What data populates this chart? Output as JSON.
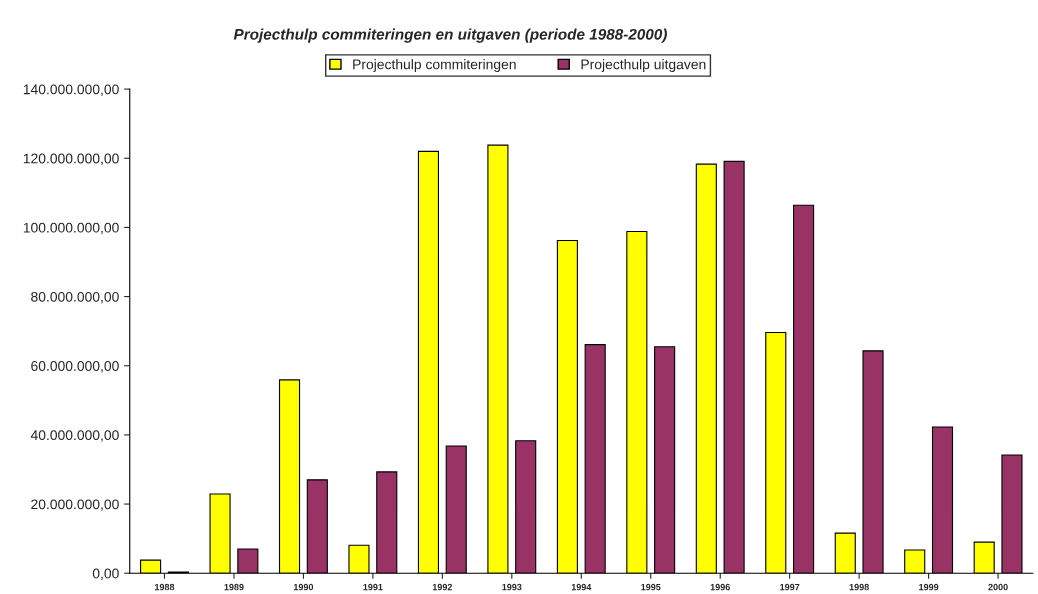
{
  "chart_data": {
    "type": "bar",
    "title": "Projecthulp commiteringen en uitgaven (periode 1988-2000)",
    "categories": [
      "1988",
      "1989",
      "1990",
      "1991",
      "1992",
      "1993",
      "1994",
      "1995",
      "1996",
      "1997",
      "1998",
      "1999",
      "2000"
    ],
    "series": [
      {
        "name": "Projecthulp commiteringen",
        "color": "#ffff00",
        "values": [
          3800000,
          22900000,
          55900000,
          8100000,
          122000000,
          123800000,
          96200000,
          98800000,
          118300000,
          69600000,
          11600000,
          6700000,
          9000000
        ]
      },
      {
        "name": "Projecthulp uitgaven",
        "color": "#993366",
        "values": [
          300000,
          7000000,
          27000000,
          29300000,
          36800000,
          38300000,
          66100000,
          65500000,
          119100000,
          106400000,
          64300000,
          42300000,
          34200000
        ]
      }
    ],
    "ylim": [
      0,
      140000000
    ],
    "yticks": [
      {
        "value": 0,
        "label": "0,00"
      },
      {
        "value": 20000000,
        "label": "20.000.000,00"
      },
      {
        "value": 40000000,
        "label": "40.000.000,00"
      },
      {
        "value": 60000000,
        "label": "60.000.000,00"
      },
      {
        "value": 80000000,
        "label": "80.000.000,00"
      },
      {
        "value": 100000000,
        "label": "100.000.000,00"
      },
      {
        "value": 120000000,
        "label": "120.000.000,00"
      },
      {
        "value": 140000000,
        "label": "140.000.000,00"
      }
    ],
    "grid": false,
    "legend": "top"
  }
}
